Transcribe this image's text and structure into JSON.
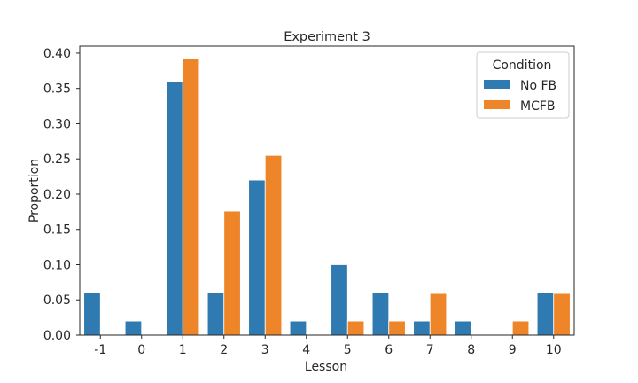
{
  "chart_data": {
    "type": "bar",
    "title": "Experiment 3",
    "xlabel": "Lesson",
    "ylabel": "Proportion",
    "categories": [
      "-1",
      "0",
      "1",
      "2",
      "3",
      "4",
      "5",
      "6",
      "7",
      "8",
      "9",
      "10"
    ],
    "series": [
      {
        "name": "No FB",
        "color": "#2e7ab1",
        "values": [
          0.06,
          0.02,
          0.36,
          0.06,
          0.22,
          0.02,
          0.1,
          0.06,
          0.02,
          0.02,
          0.0,
          0.06
        ]
      },
      {
        "name": "MCFB",
        "color": "#ee8629",
        "values": [
          0.0,
          0.0,
          0.392,
          0.176,
          0.255,
          0.0,
          0.02,
          0.02,
          0.059,
          0.0,
          0.02,
          0.059
        ]
      }
    ],
    "ylim": [
      0,
      0.41
    ],
    "yticks": [
      "0.00",
      "0.05",
      "0.10",
      "0.15",
      "0.20",
      "0.25",
      "0.30",
      "0.35",
      "0.40"
    ],
    "grid": false,
    "legend": {
      "title": "Condition",
      "position": "top-right"
    }
  }
}
